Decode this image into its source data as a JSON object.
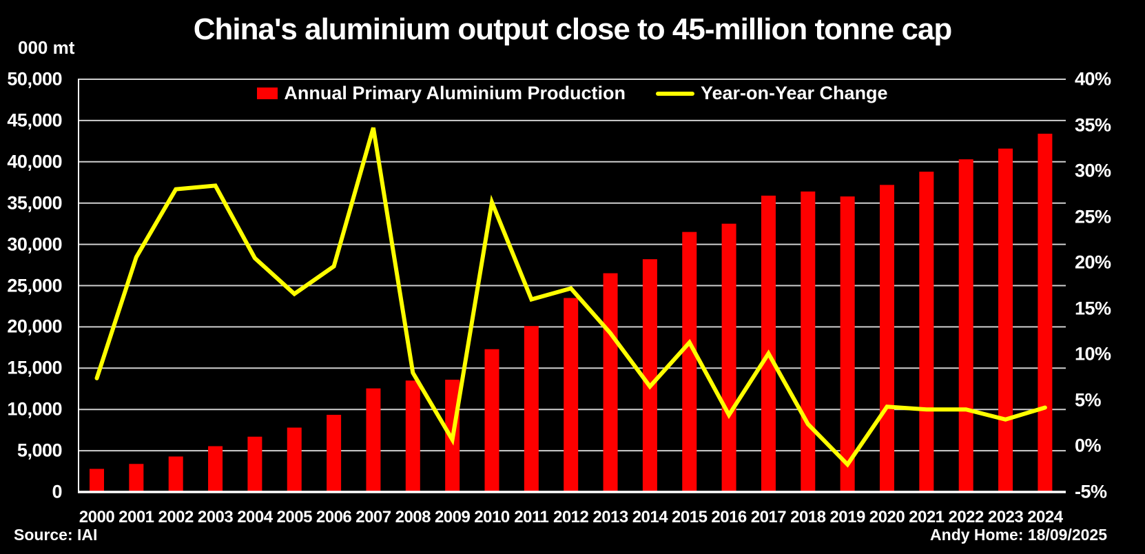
{
  "title": "China's aluminium output close to 45-million tonne cap",
  "axis_unit_label": "000 mt",
  "source": "Source: IAI",
  "credit": "Andy Home: 18/09/2025",
  "legend": {
    "bars": "Annual Primary Aluminium Production",
    "line": "Year-on-Year Change"
  },
  "colors": {
    "background": "#000000",
    "bar": "#fe0000",
    "line": "#ffff00",
    "grid": "#d0d0d0",
    "axis": "#ffffff",
    "text": "#ffffff"
  },
  "chart_data": {
    "type": "bar",
    "subtype": "bar+line dual axis",
    "title": "China's aluminium output close to 45-million tonne cap",
    "categories": [
      "2000",
      "2001",
      "2002",
      "2003",
      "2004",
      "2005",
      "2006",
      "2007",
      "2008",
      "2009",
      "2010",
      "2011",
      "2012",
      "2013",
      "2014",
      "2015",
      "2016",
      "2017",
      "2018",
      "2019",
      "2020",
      "2021",
      "2022",
      "2023",
      "2024"
    ],
    "series": [
      {
        "name": "Annual Primary Aluminium Production",
        "type": "bar",
        "axis": "left",
        "unit": "000 mt",
        "color": "#fe0000",
        "values": [
          2800,
          3400,
          4300,
          5550,
          6700,
          7800,
          9350,
          12550,
          13500,
          13600,
          17300,
          20100,
          23500,
          26500,
          28200,
          31500,
          32500,
          35900,
          36400,
          35800,
          37200,
          38800,
          40300,
          41600,
          43400
        ]
      },
      {
        "name": "Year-on-Year Change",
        "type": "line",
        "axis": "right",
        "unit": "%",
        "color": "#ffff00",
        "values": [
          7.4,
          20.6,
          28.0,
          28.4,
          20.5,
          16.6,
          19.6,
          34.7,
          8.0,
          0.7,
          26.6,
          16.0,
          17.2,
          12.3,
          6.5,
          11.3,
          3.4,
          10.1,
          2.4,
          -2.0,
          4.3,
          4.0,
          4.0,
          2.9,
          4.2
        ]
      }
    ],
    "left_axis": {
      "label": "000 mt",
      "min": 0,
      "max": 50000,
      "step": 5000,
      "tick_labels": [
        "50,000",
        "45,000",
        "40,000",
        "35,000",
        "30,000",
        "25,000",
        "20,000",
        "15,000",
        "10,000",
        "5,000",
        "0"
      ]
    },
    "right_axis": {
      "min": -5,
      "max": 40,
      "step": 5,
      "tick_labels": [
        "40%",
        "35%",
        "30%",
        "25%",
        "20%",
        "15%",
        "10%",
        "5%",
        "0%",
        "-5%"
      ]
    },
    "grid": true,
    "legend_position": "top"
  }
}
